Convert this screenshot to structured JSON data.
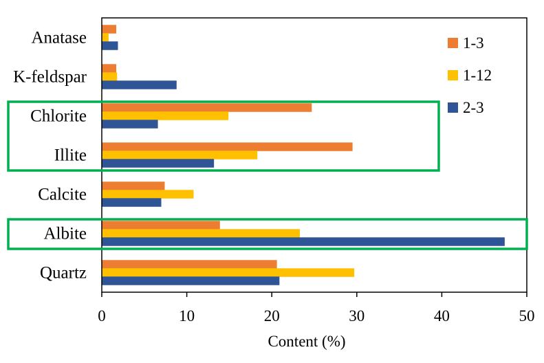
{
  "chart_data": {
    "type": "bar",
    "orientation": "horizontal",
    "categories": [
      "Anatase",
      "K-feldspar",
      "Chlorite",
      "Illite",
      "Calcite",
      "Albite",
      "Quartz"
    ],
    "series": [
      {
        "name": "1-3",
        "color": "#ED7D31",
        "values": [
          1.7,
          1.7,
          24.7,
          29.5,
          7.4,
          13.9,
          20.6
        ]
      },
      {
        "name": "1-12",
        "color": "#FFC000",
        "values": [
          0.8,
          1.8,
          14.9,
          18.3,
          10.8,
          23.3,
          29.7
        ]
      },
      {
        "name": "2-3",
        "color": "#2F5597",
        "values": [
          1.9,
          8.8,
          6.6,
          13.2,
          7.0,
          47.4,
          20.9
        ]
      }
    ],
    "xlabel": "Content (%)",
    "ylabel": "",
    "xlim": [
      0,
      50
    ],
    "xticks": [
      "0",
      "10",
      "20",
      "30",
      "40",
      "50"
    ],
    "grid": false,
    "legend_position": "top-right",
    "highlight_boxes": [
      {
        "categories": [
          "Chlorite",
          "Illite"
        ],
        "color": "#00B050"
      },
      {
        "categories": [
          "Albite"
        ],
        "color": "#00B050"
      }
    ]
  }
}
